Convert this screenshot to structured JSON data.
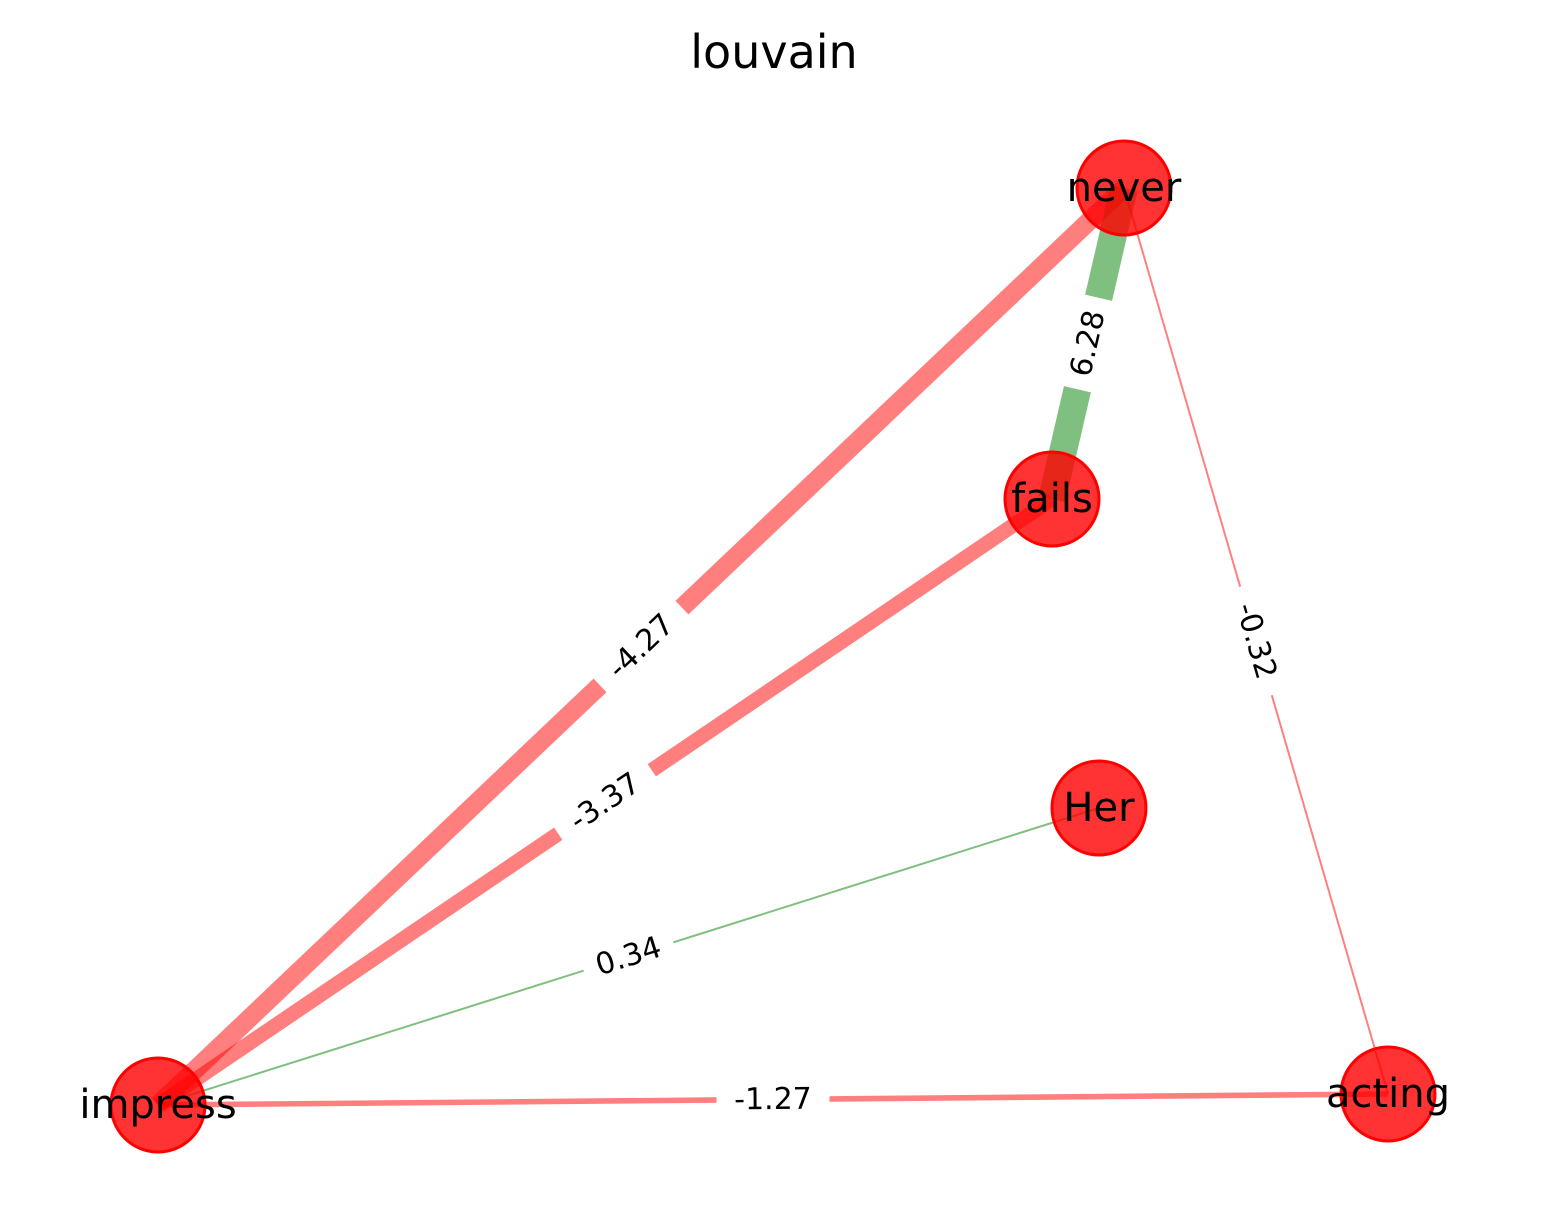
{
  "title": "louvain",
  "colors": {
    "node_fill": "#ff0000",
    "node_stroke": "#ff0000",
    "positive_edge": "#008000",
    "negative_edge": "#ff0000",
    "background": "#ffffff"
  },
  "nodes": [
    {
      "id": "never",
      "label": "never"
    },
    {
      "id": "fails",
      "label": "fails"
    },
    {
      "id": "Her",
      "label": "Her"
    },
    {
      "id": "impress",
      "label": "impress"
    },
    {
      "id": "acting",
      "label": "acting"
    }
  ],
  "edges": [
    {
      "source": "impress",
      "target": "never",
      "weight": -4.27,
      "label": "-4.27"
    },
    {
      "source": "impress",
      "target": "fails",
      "weight": -3.37,
      "label": "-3.37"
    },
    {
      "source": "fails",
      "target": "never",
      "weight": 6.28,
      "label": "6.28"
    },
    {
      "source": "impress",
      "target": "Her",
      "weight": 0.34,
      "label": "0.34"
    },
    {
      "source": "impress",
      "target": "acting",
      "weight": -1.27,
      "label": "-1.27"
    },
    {
      "source": "never",
      "target": "acting",
      "weight": -0.32,
      "label": "-0.32"
    }
  ]
}
